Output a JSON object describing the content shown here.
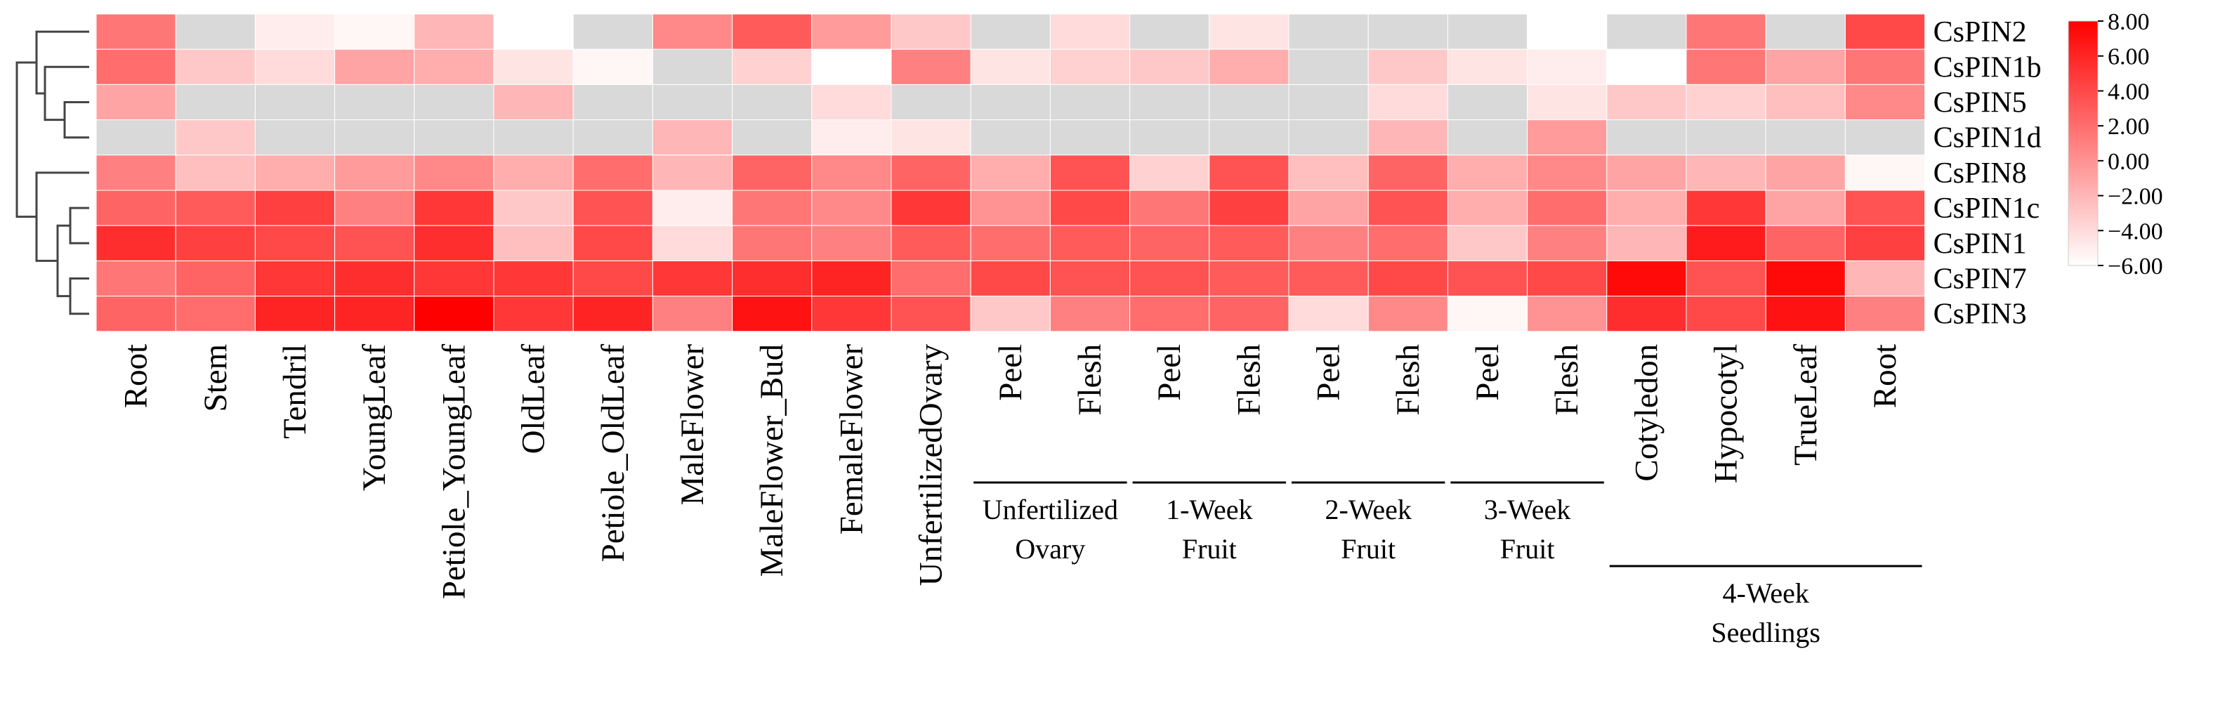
{
  "chart_data": {
    "type": "heatmap",
    "title": "",
    "rows": [
      "CsPIN2",
      "CsPIN1b",
      "CsPIN5",
      "CsPIN1d",
      "CsPIN8",
      "CsPIN1c",
      "CsPIN1",
      "CsPIN7",
      "CsPIN3"
    ],
    "columns": [
      "Root",
      "Stem",
      "Tendril",
      "YoungLeaf",
      "Petiole_YoungLeaf",
      "OldLeaf",
      "Petiole_OldLeaf",
      "MaleFlower",
      "MaleFlower_Bud",
      "FemaleFlower",
      "UnfertilizedOvary",
      "Peel",
      "Flesh",
      "Peel",
      "Flesh",
      "Peel",
      "Flesh",
      "Peel",
      "Flesh",
      "Cotyledon",
      "Hypocotyl",
      "TrueLeaf",
      "Root"
    ],
    "column_groups": [
      {
        "label": "Unfertilized Ovary",
        "lines": [
          "Unfertilized",
          "Ovary"
        ],
        "start": 11,
        "end": 12
      },
      {
        "label": "1-Week Fruit",
        "lines": [
          "1-Week",
          "Fruit"
        ],
        "start": 13,
        "end": 14
      },
      {
        "label": "2-Week Fruit",
        "lines": [
          "2-Week",
          "Fruit"
        ],
        "start": 15,
        "end": 16
      },
      {
        "label": "3-Week Fruit",
        "lines": [
          "3-Week",
          "Fruit"
        ],
        "start": 17,
        "end": 18
      },
      {
        "label": "4-Week Seedlings",
        "lines": [
          "4-Week",
          "Seedlings"
        ],
        "start": 19,
        "end": 22
      }
    ],
    "values": [
      [
        1.5,
        null,
        -5.0,
        -5.5,
        -2.0,
        -6.0,
        null,
        0.5,
        3.0,
        -0.5,
        -3.0,
        null,
        -4.0,
        null,
        -4.5,
        null,
        null,
        null,
        -6.0,
        null,
        1.5,
        null,
        4.0
      ],
      [
        2.0,
        -3.0,
        -4.0,
        -1.0,
        -1.5,
        -4.5,
        -5.5,
        null,
        -3.5,
        -6.0,
        1.0,
        -4.5,
        -3.5,
        -3.0,
        -1.5,
        null,
        -3.0,
        -4.5,
        -5.0,
        -6.0,
        1.5,
        -1.0,
        1.5
      ],
      [
        -1.0,
        null,
        null,
        null,
        null,
        -2.0,
        null,
        null,
        null,
        -4.0,
        null,
        null,
        null,
        null,
        null,
        null,
        -4.0,
        null,
        -4.5,
        -3.0,
        -3.5,
        -2.5,
        0.5
      ],
      [
        null,
        -3.0,
        null,
        null,
        null,
        null,
        null,
        -2.0,
        null,
        -5.0,
        -4.5,
        null,
        null,
        null,
        null,
        null,
        -2.0,
        null,
        -0.5,
        null,
        null,
        null,
        null
      ],
      [
        1.0,
        -2.5,
        -1.5,
        -0.5,
        0.5,
        -1.5,
        2.0,
        -2.0,
        2.5,
        0.5,
        2.5,
        -1.5,
        3.5,
        -3.5,
        3.5,
        -2.5,
        2.5,
        -1.5,
        0.5,
        -1.0,
        -2.0,
        -1.0,
        -5.5
      ],
      [
        2.5,
        3.0,
        4.5,
        1.0,
        5.0,
        -3.0,
        3.5,
        -5.0,
        1.5,
        0.5,
        5.0,
        0.0,
        4.0,
        1.5,
        4.5,
        -1.0,
        3.5,
        -1.5,
        2.0,
        -1.5,
        5.0,
        -1.0,
        3.5
      ],
      [
        5.5,
        4.5,
        4.0,
        3.5,
        5.5,
        -2.5,
        4.0,
        -4.0,
        1.5,
        1.0,
        3.0,
        2.0,
        3.0,
        2.5,
        3.0,
        1.0,
        2.0,
        -3.0,
        1.0,
        -2.0,
        6.5,
        2.5,
        4.5
      ],
      [
        1.5,
        2.5,
        5.0,
        5.5,
        5.0,
        5.0,
        4.0,
        5.0,
        5.5,
        6.0,
        2.0,
        4.0,
        3.5,
        3.5,
        3.0,
        3.0,
        4.0,
        3.5,
        4.0,
        7.5,
        3.5,
        7.5,
        -2.0
      ],
      [
        2.5,
        2.0,
        6.0,
        6.0,
        8.0,
        5.0,
        6.0,
        1.0,
        7.0,
        5.0,
        3.5,
        -3.0,
        1.0,
        2.0,
        2.5,
        -4.0,
        0.5,
        -5.5,
        0.0,
        5.5,
        4.0,
        7.0,
        1.0
      ]
    ],
    "missing_color": "#d9d9d9",
    "colorscale": {
      "low_color": "#ffffff",
      "high_color": "#ff0000",
      "min": -6.0,
      "max": 8.0
    },
    "colorbar_ticks": [
      "8.00",
      "6.00",
      "4.00",
      "2.00",
      "0.00",
      "−2.00",
      "−4.00",
      "−6.00"
    ],
    "dendrogram": "row clustering tree shown on left"
  }
}
